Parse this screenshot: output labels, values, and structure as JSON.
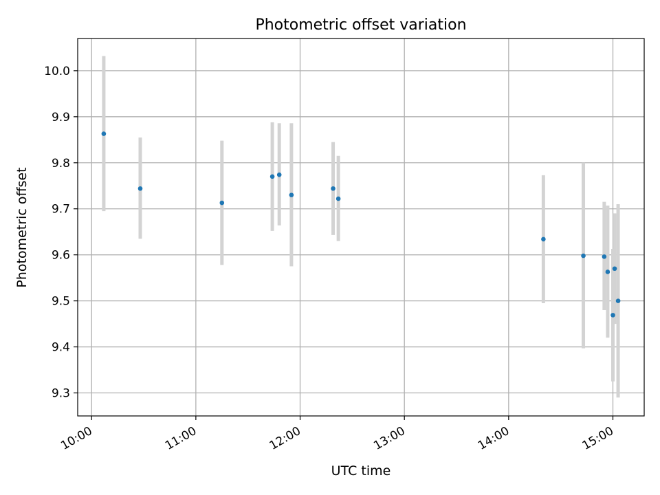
{
  "chart_data": {
    "type": "scatter",
    "title": "Photometric offset variation",
    "xlabel": "UTC time",
    "ylabel": "Photometric offset",
    "xlim": [
      "09:52",
      "15:18"
    ],
    "ylim": [
      9.25,
      10.07
    ],
    "x_ticks": [
      "10:00",
      "11:00",
      "12:00",
      "13:00",
      "14:00",
      "15:00"
    ],
    "y_ticks": [
      9.3,
      9.4,
      9.5,
      9.6,
      9.7,
      9.8,
      9.9,
      10.0
    ],
    "grid": true,
    "points": [
      {
        "x": "10:07",
        "y": 9.863,
        "ylow": 9.695,
        "yhigh": 10.032
      },
      {
        "x": "10:28",
        "y": 9.744,
        "ylow": 9.635,
        "yhigh": 9.855
      },
      {
        "x": "11:15",
        "y": 9.713,
        "ylow": 9.578,
        "yhigh": 9.848
      },
      {
        "x": "11:44",
        "y": 9.77,
        "ylow": 9.652,
        "yhigh": 9.888
      },
      {
        "x": "11:48",
        "y": 9.774,
        "ylow": 9.664,
        "yhigh": 9.886
      },
      {
        "x": "11:55",
        "y": 9.73,
        "ylow": 9.575,
        "yhigh": 9.886
      },
      {
        "x": "12:19",
        "y": 9.744,
        "ylow": 9.643,
        "yhigh": 9.845
      },
      {
        "x": "12:22",
        "y": 9.722,
        "ylow": 9.63,
        "yhigh": 9.815
      },
      {
        "x": "14:20",
        "y": 9.634,
        "ylow": 9.495,
        "yhigh": 9.773
      },
      {
        "x": "14:43",
        "y": 9.598,
        "ylow": 9.397,
        "yhigh": 9.8
      },
      {
        "x": "14:55",
        "y": 9.596,
        "ylow": 9.48,
        "yhigh": 9.715
      },
      {
        "x": "14:57",
        "y": 9.563,
        "ylow": 9.42,
        "yhigh": 9.707
      },
      {
        "x": "15:00",
        "y": 9.469,
        "ylow": 9.325,
        "yhigh": 9.613
      },
      {
        "x": "15:01",
        "y": 9.57,
        "ylow": 9.45,
        "yhigh": 9.69
      },
      {
        "x": "15:03",
        "y": 9.5,
        "ylow": 9.29,
        "yhigh": 9.71
      }
    ],
    "colors": {
      "point": "#1f77b4",
      "errorbar": "#d3d3d3",
      "grid": "#b0b0b0"
    }
  }
}
